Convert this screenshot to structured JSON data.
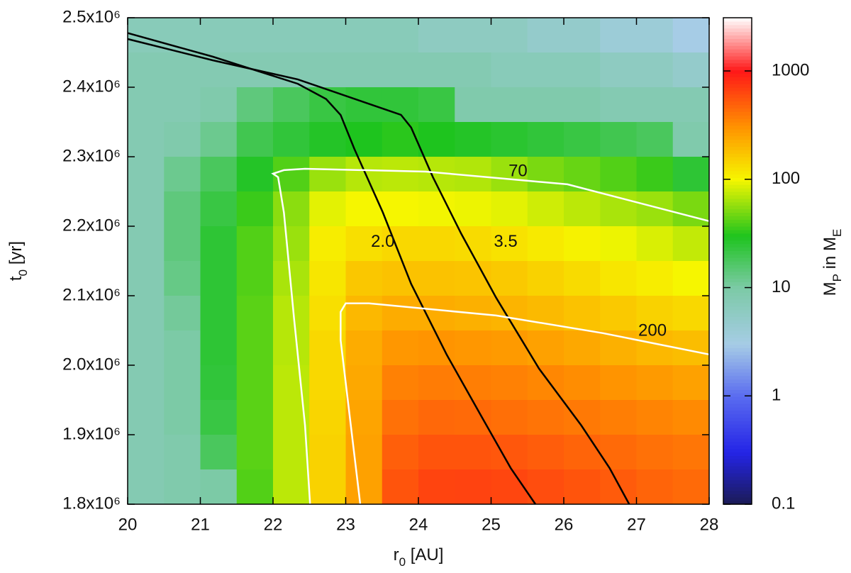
{
  "chart_data": {
    "type": "heatmap",
    "xlabel": [
      "r",
      "0",
      " [AU]"
    ],
    "ylabel": [
      "t",
      "0",
      " [yr]"
    ],
    "colorbar_label": [
      "M",
      "P",
      " in M",
      "E"
    ],
    "xlim": [
      20,
      28
    ],
    "ylim": [
      1800000,
      2500000
    ],
    "xticks": [
      20,
      21,
      22,
      23,
      24,
      25,
      26,
      27,
      28
    ],
    "yticks": [
      {
        "value": 1800000,
        "label": "1.8x10⁶"
      },
      {
        "value": 1900000,
        "label": "1.9x10⁶"
      },
      {
        "value": 2000000,
        "label": "2.0x10⁶"
      },
      {
        "value": 2100000,
        "label": "2.1x10⁶"
      },
      {
        "value": 2200000,
        "label": "2.2x10⁶"
      },
      {
        "value": 2300000,
        "label": "2.3x10⁶"
      },
      {
        "value": 2400000,
        "label": "2.4x10⁶"
      },
      {
        "value": 2500000,
        "label": "2.5x10⁶"
      }
    ],
    "zlim": [
      0.1,
      3100
    ],
    "zlog": true,
    "zticks": [
      0.1,
      1,
      10,
      100,
      1000
    ],
    "colormap": [
      {
        "value": 0.1,
        "color": "#1b1b55"
      },
      {
        "value": 0.3,
        "color": "#2424e6"
      },
      {
        "value": 1,
        "color": "#5a6cf0"
      },
      {
        "value": 3,
        "color": "#a6cce6"
      },
      {
        "value": 10,
        "color": "#7ccaa6"
      },
      {
        "value": 30,
        "color": "#1ec41e"
      },
      {
        "value": 100,
        "color": "#f6f600"
      },
      {
        "value": 300,
        "color": "#ff9400"
      },
      {
        "value": 1000,
        "color": "#ff1818"
      },
      {
        "value": 3100,
        "color": "#ffffff"
      }
    ],
    "x_edges": [
      20,
      20.5,
      21,
      21.5,
      22,
      22.5,
      23,
      23.5,
      24,
      24.5,
      25,
      25.5,
      26,
      26.5,
      27,
      27.5,
      28
    ],
    "y_edges": [
      2500000,
      2450000,
      2400000,
      2350000,
      2300000,
      2250000,
      2200000,
      2150000,
      2100000,
      2050000,
      2000000,
      1950000,
      1900000,
      1850000,
      1800000
    ],
    "z": [
      [
        7,
        7,
        7,
        7,
        7,
        7,
        7,
        7,
        6,
        6,
        6,
        5,
        5,
        4,
        4,
        3
      ],
      [
        8,
        8,
        8,
        8,
        8,
        8,
        8,
        8,
        8,
        8,
        7,
        7,
        7,
        6,
        6,
        5
      ],
      [
        8,
        8,
        9,
        14,
        18,
        22,
        24,
        24,
        22,
        9,
        9,
        9,
        9,
        8,
        8,
        8
      ],
      [
        8,
        9,
        12,
        20,
        24,
        28,
        30,
        32,
        30,
        28,
        26,
        24,
        22,
        20,
        18,
        9
      ],
      [
        8,
        12,
        18,
        28,
        40,
        60,
        70,
        72,
        70,
        68,
        60,
        50,
        45,
        40,
        35,
        25
      ],
      [
        8,
        14,
        22,
        35,
        55,
        90,
        100,
        100,
        98,
        95,
        90,
        80,
        72,
        65,
        60,
        50
      ],
      [
        8,
        14,
        25,
        40,
        60,
        110,
        130,
        140,
        140,
        135,
        125,
        115,
        105,
        95,
        85,
        75
      ],
      [
        8,
        13,
        25,
        40,
        65,
        120,
        170,
        180,
        180,
        175,
        165,
        150,
        135,
        120,
        110,
        100
      ],
      [
        8,
        11,
        25,
        42,
        70,
        130,
        200,
        230,
        230,
        220,
        210,
        195,
        180,
        165,
        150,
        140
      ],
      [
        8,
        10,
        25,
        42,
        70,
        140,
        230,
        290,
        300,
        290,
        280,
        260,
        240,
        220,
        200,
        190
      ],
      [
        8,
        10,
        24,
        42,
        72,
        140,
        240,
        360,
        380,
        370,
        360,
        340,
        320,
        300,
        280,
        260
      ],
      [
        8,
        10,
        22,
        42,
        72,
        145,
        250,
        420,
        460,
        450,
        430,
        410,
        390,
        370,
        350,
        330
      ],
      [
        8,
        9,
        18,
        42,
        72,
        150,
        260,
        500,
        560,
        560,
        540,
        510,
        480,
        450,
        420,
        400
      ],
      [
        8,
        9,
        10,
        40,
        72,
        150,
        260,
        560,
        650,
        660,
        640,
        600,
        560,
        520,
        480,
        450
      ]
    ],
    "contours": [
      {
        "label": "2.0",
        "color": "#000000",
        "label_x": 23.51,
        "label_y": 2176700,
        "x": [
          20,
          21.17,
          22.34,
          22.73,
          22.93,
          23.12,
          23.51,
          23.9,
          24.39,
          24.88,
          25.27,
          25.61
        ],
        "y": [
          2478000,
          2444000,
          2405000,
          2383000,
          2360000,
          2311000,
          2220000,
          2117000,
          2015000,
          1924000,
          1852000,
          1800000
        ]
      },
      {
        "label": "3.5",
        "color": "#000000",
        "label_x": 25.2,
        "label_y": 2176700,
        "x": [
          20,
          21.17,
          22.34,
          23.22,
          23.76,
          23.9,
          24.2,
          24.59,
          25.07,
          25.66,
          26.24,
          26.63,
          26.9
        ],
        "y": [
          2469400,
          2438800,
          2411300,
          2379700,
          2360300,
          2342000,
          2270500,
          2189000,
          2097000,
          1995000,
          1913500,
          1852000,
          1800000
        ]
      },
      {
        "label": "70",
        "color": "#ffffff",
        "label_x": 25.37,
        "label_y": 2278600,
        "x": [
          22.51,
          22.44,
          22.29,
          22.15,
          22.07,
          22.0,
          22.15,
          22.44,
          24.1,
          26.05,
          28
        ],
        "y": [
          1800000,
          1913500,
          2066500,
          2219500,
          2270500,
          2275600,
          2280700,
          2282700,
          2278600,
          2260300,
          2207300
        ]
      },
      {
        "label": "200",
        "color": "#ffffff",
        "label_x": 27.22,
        "label_y": 2049000,
        "x": [
          23.2,
          23.07,
          22.93,
          22.93,
          23.0,
          23.32,
          25.07,
          26.54,
          28
        ],
        "y": [
          1800000,
          1913500,
          2036000,
          2076700,
          2089000,
          2089000,
          2071600,
          2046100,
          2015500
        ]
      }
    ]
  }
}
